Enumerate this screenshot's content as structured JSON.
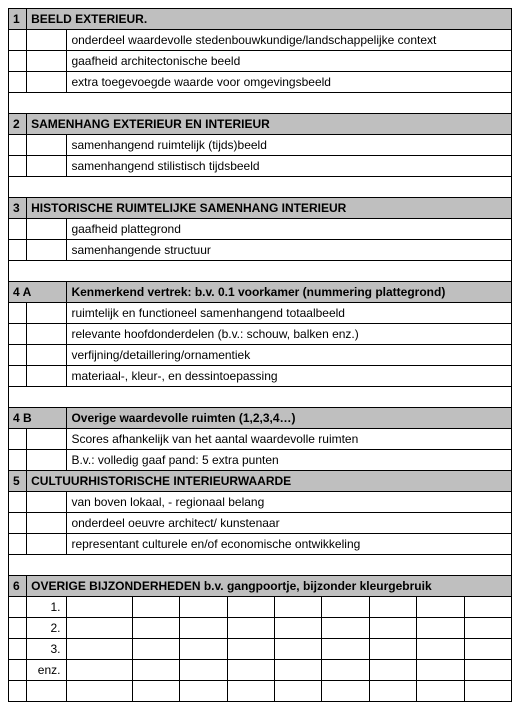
{
  "colors": {
    "header_bg": "#bfbfbf",
    "border": "#000000",
    "bg": "#ffffff",
    "text": "#000000"
  },
  "font": {
    "family": "Arial",
    "size_pt": 9
  },
  "section1": {
    "num": "1",
    "title": "BEELD EXTERIEUR.",
    "rows": [
      "onderdeel waardevolle stedenbouwkundige/landschappelijke context",
      "gaafheid architectonische beeld",
      "extra toegevoegde waarde voor omgevingsbeeld"
    ]
  },
  "section2": {
    "num": "2",
    "title": "SAMENHANG EXTERIEUR EN INTERIEUR",
    "rows": [
      "samenhangend ruimtelijk (tijds)beeld",
      "samenhangend stilistisch tijdsbeeld"
    ]
  },
  "section3": {
    "num": "3",
    "title": "HISTORISCHE RUIMTELIJKE SAMENHANG INTERIEUR",
    "rows": [
      "gaafheid plattegrond",
      "samenhangende structuur"
    ]
  },
  "section4a": {
    "num": "4 A",
    "title": "Kenmerkend vertrek: b.v. 0.1 voorkamer (nummering plattegrond)",
    "rows": [
      "ruimtelijk en functioneel samenhangend totaalbeeld",
      "relevante hoofdonderdelen (b.v.: schouw, balken enz.)",
      "verfijning/detaillering/ornamentiek",
      "materiaal-, kleur-,  en dessintoepassing"
    ]
  },
  "section4b": {
    "num": "4 B",
    "title": "Overige waardevolle ruimten (1,2,3,4…)",
    "rows": [
      "Scores afhankelijk van het aantal waardevolle ruimten",
      "B.v.: volledig gaaf pand: 5 extra punten"
    ]
  },
  "section5": {
    "num": "5",
    "title": "CULTUURHISTORISCHE INTERIEURWAARDE",
    "rows": [
      "van boven lokaal, - regionaal belang",
      "onderdeel oeuvre architect/ kunstenaar",
      "representant culturele en/of economische ontwikkeling"
    ]
  },
  "section6": {
    "num": "6",
    "title": "OVERIGE BIJZONDERHEDEN b.v. gangpoortje, bijzonder kleurgebruik",
    "list": [
      "1.",
      "2.",
      "3.",
      "enz."
    ]
  }
}
